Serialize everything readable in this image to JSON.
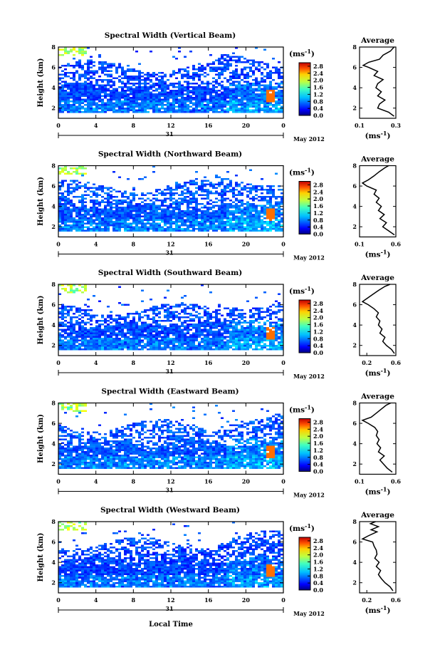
{
  "figure": {
    "xlabel": "Local Time",
    "date_label": "May 2012",
    "day_label": "31",
    "avg_title": "Average",
    "colorbar_unit_base": "(ms",
    "colorbar_unit_exp": "-1",
    "colorbar_unit_close": ")"
  },
  "chart_data": [
    {
      "type": "heatmap",
      "title": "Spectral Width (Vertical Beam)",
      "ylabel": "Height (km)",
      "x_ticks": [
        "0",
        "4",
        "8",
        "12",
        "16",
        "20",
        "0"
      ],
      "y_ticks": [
        "2",
        "4",
        "6",
        "8"
      ],
      "xlim": [
        0,
        24
      ],
      "ylim": [
        1.0,
        8.0
      ],
      "cbar_ticks": [
        "0.0",
        "0.4",
        "0.8",
        "1.2",
        "1.6",
        "2.0",
        "2.4",
        "2.8"
      ],
      "clim": [
        0.0,
        3.0
      ],
      "top_km": 6.1,
      "mid_top_km": 4.2,
      "base_level": 0.4,
      "profile": {
        "title": "Average",
        "xlabel": "(ms-1)",
        "x_ticks": [
          "0.1",
          "0.3"
        ],
        "xlim": [
          0.1,
          0.3
        ],
        "y_ticks": [
          "2",
          "4",
          "6",
          "8"
        ],
        "heights": [
          1.2,
          1.6,
          2.0,
          2.4,
          2.8,
          3.2,
          3.6,
          4.0,
          4.4,
          4.8,
          5.2,
          5.6,
          6.0,
          6.2,
          6.5,
          6.8,
          7.2,
          7.6,
          8.0
        ],
        "values": [
          0.29,
          0.26,
          0.2,
          0.21,
          0.24,
          0.2,
          0.22,
          0.19,
          0.2,
          0.23,
          0.18,
          0.2,
          0.15,
          0.12,
          0.15,
          0.21,
          0.23,
          0.27,
          0.29
        ]
      }
    },
    {
      "type": "heatmap",
      "title": "Spectral Width (Northward Beam)",
      "ylabel": "Height (km)",
      "x_ticks": [
        "0",
        "4",
        "8",
        "12",
        "16",
        "20",
        "0"
      ],
      "y_ticks": [
        "2",
        "4",
        "6",
        "8"
      ],
      "xlim": [
        0,
        24
      ],
      "ylim": [
        1.0,
        8.0
      ],
      "cbar_ticks": [
        "0.0",
        "0.4",
        "0.8",
        "1.2",
        "1.6",
        "2.0",
        "2.4",
        "2.8"
      ],
      "clim": [
        0.0,
        3.0
      ],
      "top_km": 6.0,
      "mid_top_km": 4.0,
      "base_level": 0.45,
      "profile": {
        "title": "Average",
        "xlabel": "(ms-1)",
        "x_ticks": [
          "0.1",
          "0.6"
        ],
        "xlim": [
          0.1,
          0.6
        ],
        "y_ticks": [
          "2",
          "4",
          "6",
          "8"
        ],
        "heights": [
          1.2,
          1.6,
          2.0,
          2.4,
          2.8,
          3.2,
          3.6,
          4.0,
          4.4,
          4.8,
          5.2,
          5.6,
          6.0,
          6.3,
          6.6,
          7.0,
          7.4,
          7.8,
          8.0
        ],
        "values": [
          0.58,
          0.5,
          0.42,
          0.47,
          0.38,
          0.44,
          0.36,
          0.4,
          0.33,
          0.37,
          0.3,
          0.33,
          0.2,
          0.14,
          0.22,
          0.3,
          0.37,
          0.45,
          0.5
        ]
      }
    },
    {
      "type": "heatmap",
      "title": "Spectral Width (Southward Beam)",
      "ylabel": "Height (km)",
      "x_ticks": [
        "0",
        "4",
        "8",
        "12",
        "16",
        "20",
        "0"
      ],
      "y_ticks": [
        "2",
        "4",
        "6",
        "8"
      ],
      "xlim": [
        0,
        24
      ],
      "ylim": [
        1.0,
        8.0
      ],
      "cbar_ticks": [
        "0.0",
        "0.4",
        "0.8",
        "1.2",
        "1.6",
        "2.0",
        "2.4",
        "2.8"
      ],
      "clim": [
        0.0,
        3.0
      ],
      "top_km": 5.6,
      "mid_top_km": 4.1,
      "base_level": 0.42,
      "profile": {
        "title": "Average",
        "xlabel": "(ms-1)",
        "x_ticks": [
          "0.2",
          "0.6"
        ],
        "xlim": [
          0.1,
          0.6
        ],
        "y_ticks": [
          "2",
          "4",
          "6",
          "8"
        ],
        "heights": [
          1.2,
          1.6,
          2.0,
          2.4,
          2.8,
          3.2,
          3.6,
          4.0,
          4.4,
          4.8,
          5.2,
          5.6,
          6.0,
          6.3,
          6.6,
          7.0,
          7.4,
          7.8,
          8.0
        ],
        "values": [
          0.58,
          0.54,
          0.47,
          0.42,
          0.45,
          0.38,
          0.41,
          0.36,
          0.38,
          0.33,
          0.36,
          0.3,
          0.22,
          0.14,
          0.2,
          0.28,
          0.36,
          0.45,
          0.52
        ]
      }
    },
    {
      "type": "heatmap",
      "title": "Spectral Width (Eastward Beam)",
      "ylabel": "Height (km)",
      "x_ticks": [
        "0",
        "4",
        "8",
        "12",
        "16",
        "20",
        "0"
      ],
      "y_ticks": [
        "2",
        "4",
        "6",
        "8"
      ],
      "xlim": [
        0,
        24
      ],
      "ylim": [
        1.0,
        8.0
      ],
      "cbar_ticks": [
        "0.0",
        "0.4",
        "0.8",
        "1.2",
        "1.6",
        "2.0",
        "2.4",
        "2.8"
      ],
      "clim": [
        0.0,
        3.0
      ],
      "top_km": 5.8,
      "mid_top_km": 4.0,
      "base_level": 0.45,
      "profile": {
        "title": "Average",
        "xlabel": "(ms-1)",
        "x_ticks": [
          "0.1",
          "0.6"
        ],
        "xlim": [
          0.1,
          0.6
        ],
        "y_ticks": [
          "2",
          "4",
          "6",
          "8"
        ],
        "heights": [
          1.2,
          1.6,
          2.0,
          2.4,
          2.8,
          3.2,
          3.6,
          4.0,
          4.4,
          4.8,
          5.2,
          5.6,
          6.0,
          6.3,
          6.6,
          7.0,
          7.4,
          7.8,
          8.0
        ],
        "values": [
          0.55,
          0.48,
          0.43,
          0.38,
          0.44,
          0.36,
          0.39,
          0.34,
          0.37,
          0.33,
          0.35,
          0.31,
          0.22,
          0.14,
          0.26,
          0.33,
          0.4,
          0.47,
          0.53
        ]
      }
    },
    {
      "type": "heatmap",
      "title": "Spectral Width (Westward Beam)",
      "ylabel": "Height (km)",
      "x_ticks": [
        "0",
        "4",
        "8",
        "12",
        "16",
        "20",
        "0"
      ],
      "y_ticks": [
        "2",
        "4",
        "6",
        "8"
      ],
      "xlim": [
        0,
        24
      ],
      "ylim": [
        1.0,
        8.0
      ],
      "cbar_ticks": [
        "0.0",
        "0.4",
        "0.8",
        "1.2",
        "1.6",
        "2.0",
        "2.4",
        "2.8"
      ],
      "clim": [
        0.0,
        3.0
      ],
      "top_km": 5.9,
      "mid_top_km": 4.3,
      "base_level": 0.4,
      "profile": {
        "title": "Average",
        "xlabel": "(ms-1)",
        "x_ticks": [
          "0.2",
          "0.6"
        ],
        "xlim": [
          0.1,
          0.6
        ],
        "y_ticks": [
          "2",
          "4",
          "6",
          "8"
        ],
        "heights": [
          1.2,
          1.6,
          2.0,
          2.4,
          2.8,
          3.2,
          3.6,
          4.0,
          4.4,
          4.8,
          5.2,
          5.6,
          6.0,
          6.3,
          6.6,
          7.0,
          7.2,
          7.5,
          7.8,
          8.0
        ],
        "values": [
          0.56,
          0.52,
          0.45,
          0.4,
          0.36,
          0.39,
          0.33,
          0.37,
          0.31,
          0.34,
          0.33,
          0.3,
          0.28,
          0.14,
          0.22,
          0.34,
          0.26,
          0.36,
          0.25,
          0.32
        ]
      }
    }
  ]
}
